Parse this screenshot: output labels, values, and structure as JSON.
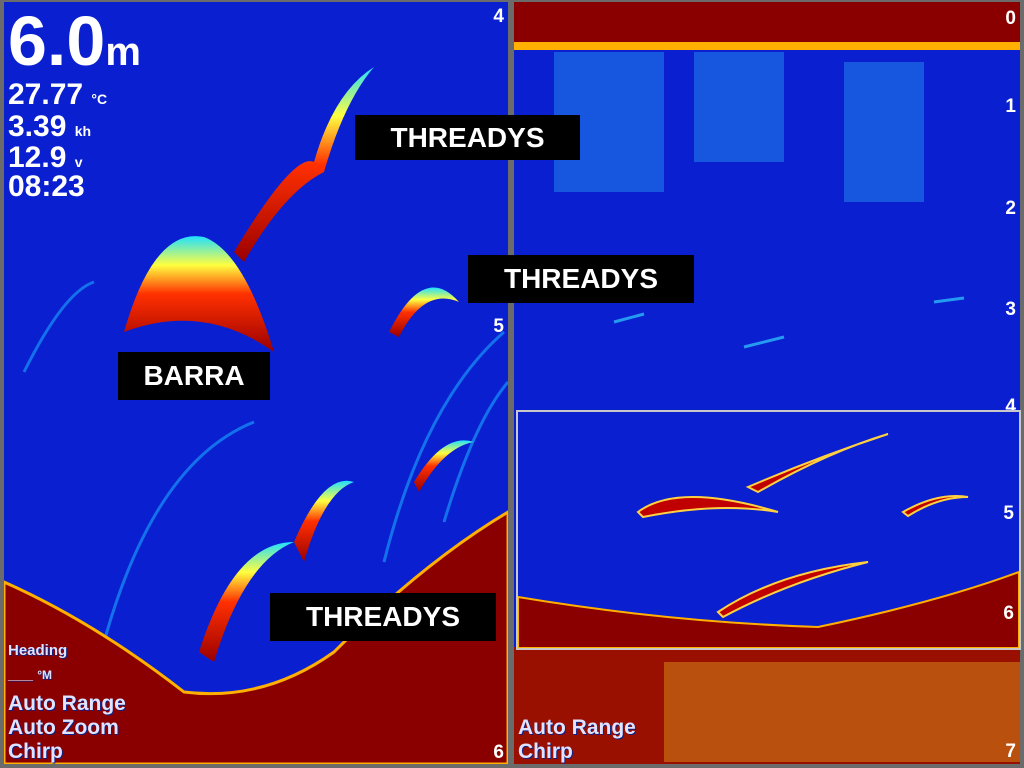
{
  "left_panel": {
    "depth": "6.0",
    "depth_unit": "m",
    "temperature": "27.77",
    "temperature_unit": "°C",
    "speed": "3.39",
    "speed_unit": "kh",
    "voltage": "12.9",
    "voltage_unit": "v",
    "time": "08:23",
    "heading_label": "Heading",
    "heading_value": "___",
    "heading_unit": "°M",
    "status": [
      "Auto Range",
      "Auto Zoom",
      "Chirp"
    ],
    "scale": [
      "4",
      "5",
      "6"
    ]
  },
  "right_panel": {
    "scale": [
      "0",
      "1",
      "2",
      "3",
      "4",
      "5",
      "6",
      "7"
    ],
    "status": [
      "Auto Range",
      "Chirp"
    ]
  },
  "annotations": [
    "THREADYS",
    "THREADYS",
    "BARRA",
    "THREADYS"
  ],
  "colors": {
    "water": "#0a1fd0",
    "bottom": "#8a0000",
    "strong_return": "#c00000",
    "frame": "#6b6b6b"
  }
}
